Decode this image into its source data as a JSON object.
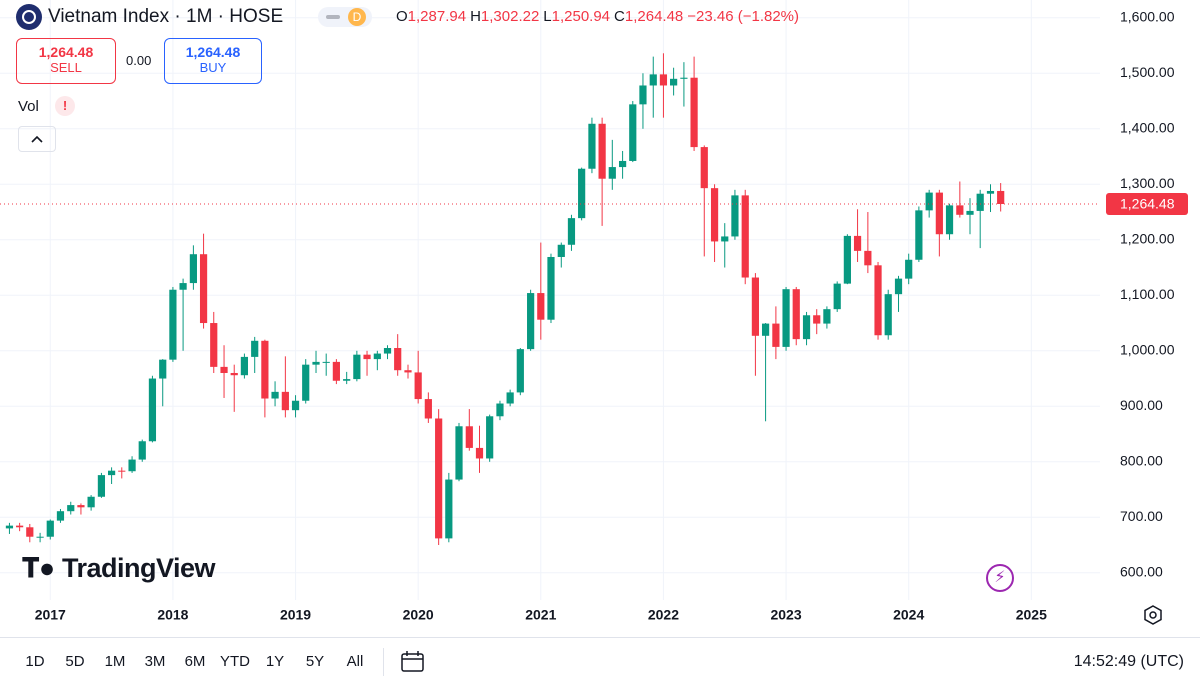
{
  "header": {
    "title": "Vietnam Index · 1M · HOSE",
    "interval_badge": "D",
    "ohlc": [
      {
        "key": "O",
        "value": "1,287.94"
      },
      {
        "key": "H",
        "value": "1,302.22"
      },
      {
        "key": "L",
        "value": "1,250.94"
      },
      {
        "key": "C",
        "value": "1,264.48"
      }
    ],
    "change": "−23.46 (−1.82%)"
  },
  "trade": {
    "sell_price": "1,264.48",
    "sell_label": "SELL",
    "spread": "0.00",
    "buy_price": "1,264.48",
    "buy_label": "BUY"
  },
  "indicator": {
    "name": "Vol",
    "warning": "!"
  },
  "logo": "TradingView",
  "toolbar": {
    "ranges": [
      "1D",
      "5D",
      "1M",
      "3M",
      "6M",
      "YTD",
      "1Y",
      "5Y",
      "All"
    ],
    "clock": "14:52:49 (UTC)"
  },
  "chart_data": {
    "type": "candlestick",
    "up_color": "#089981",
    "down_color": "#f23645",
    "grid": true,
    "xlim": [
      2016.59,
      2025.56
    ],
    "xticks": [
      2017,
      2018,
      2019,
      2020,
      2021,
      2022,
      2023,
      2024,
      2025
    ],
    "ylim": [
      551,
      1632
    ],
    "yticks": [
      {
        "value": 600,
        "label": "600.00"
      },
      {
        "value": 700,
        "label": "700.00"
      },
      {
        "value": 800,
        "label": "800.00"
      },
      {
        "value": 900,
        "label": "900.00"
      },
      {
        "value": 1000,
        "label": "1,000.00"
      },
      {
        "value": 1100,
        "label": "1,100.00"
      },
      {
        "value": 1200,
        "label": "1,200.00"
      },
      {
        "value": 1300,
        "label": "1,300.00"
      },
      {
        "value": 1400,
        "label": "1,400.00"
      },
      {
        "value": 1500,
        "label": "1,500.00"
      },
      {
        "value": 1600,
        "label": "1,600.00"
      }
    ],
    "last_price": {
      "value": 1264.48,
      "label": "1,264.48"
    },
    "x": [
      2016.667,
      2016.75,
      2016.833,
      2016.917,
      2017,
      2017.083,
      2017.167,
      2017.25,
      2017.333,
      2017.417,
      2017.5,
      2017.583,
      2017.667,
      2017.75,
      2017.833,
      2017.917,
      2018,
      2018.083,
      2018.167,
      2018.25,
      2018.333,
      2018.417,
      2018.5,
      2018.583,
      2018.667,
      2018.75,
      2018.833,
      2018.917,
      2019,
      2019.083,
      2019.167,
      2019.25,
      2019.333,
      2019.417,
      2019.5,
      2019.583,
      2019.667,
      2019.75,
      2019.833,
      2019.917,
      2020,
      2020.083,
      2020.167,
      2020.25,
      2020.333,
      2020.417,
      2020.5,
      2020.583,
      2020.667,
      2020.75,
      2020.833,
      2020.917,
      2021,
      2021.083,
      2021.167,
      2021.25,
      2021.333,
      2021.417,
      2021.5,
      2021.583,
      2021.667,
      2021.75,
      2021.833,
      2021.917,
      2022,
      2022.083,
      2022.167,
      2022.25,
      2022.333,
      2022.417,
      2022.5,
      2022.583,
      2022.667,
      2022.75,
      2022.833,
      2022.917,
      2023,
      2023.083,
      2023.167,
      2023.25,
      2023.333,
      2023.417,
      2023.5,
      2023.583,
      2023.667,
      2023.75,
      2023.833,
      2023.917,
      2024,
      2024.083,
      2024.167,
      2024.25,
      2024.333,
      2024.417,
      2024.5,
      2024.583,
      2024.667,
      2024.75
    ],
    "open": [
      680,
      685,
      682,
      665,
      665,
      694,
      711,
      722,
      718,
      737,
      776,
      784,
      783,
      804,
      837,
      950,
      984,
      1110,
      1122,
      1174,
      1050,
      971,
      960,
      956,
      989,
      1018,
      914,
      926,
      893,
      910,
      975,
      980,
      980,
      946,
      949,
      993,
      985,
      995,
      1005,
      965,
      961,
      913,
      878,
      662,
      768,
      864,
      825,
      806,
      882,
      905,
      925,
      1003,
      1104,
      1056,
      1169,
      1191,
      1239,
      1328,
      1409,
      1310,
      1331,
      1342,
      1444,
      1478,
      1498,
      1478,
      1490,
      1492,
      1367,
      1293,
      1197,
      1206,
      1280,
      1132,
      1027,
      1049,
      1007,
      1111,
      1021,
      1064,
      1049,
      1075,
      1121,
      1207,
      1180,
      1154,
      1028,
      1102,
      1130,
      1164,
      1253,
      1285,
      1210,
      1262,
      1245,
      1252,
      1283,
      1287.94
    ],
    "high": [
      690,
      690,
      688,
      672,
      696,
      715,
      728,
      725,
      740,
      780,
      790,
      790,
      810,
      840,
      955,
      985,
      1115,
      1130,
      1190,
      1211,
      1070,
      1010,
      975,
      995,
      1025,
      1020,
      945,
      990,
      920,
      985,
      1000,
      995,
      985,
      962,
      1000,
      1000,
      1000,
      1010,
      1030,
      975,
      1000,
      925,
      895,
      780,
      870,
      895,
      865,
      885,
      910,
      930,
      1005,
      1110,
      1195,
      1175,
      1195,
      1245,
      1330,
      1420,
      1420,
      1380,
      1360,
      1450,
      1500,
      1530,
      1536,
      1510,
      1520,
      1530,
      1370,
      1300,
      1230,
      1290,
      1290,
      1140,
      1050,
      1080,
      1115,
      1115,
      1070,
      1075,
      1080,
      1125,
      1210,
      1255,
      1250,
      1160,
      1110,
      1135,
      1175,
      1260,
      1290,
      1290,
      1265,
      1305,
      1275,
      1290,
      1300,
      1302.22
    ],
    "low": [
      670,
      675,
      655,
      655,
      660,
      690,
      705,
      705,
      712,
      735,
      760,
      770,
      780,
      800,
      835,
      900,
      980,
      1000,
      1110,
      1040,
      960,
      915,
      890,
      950,
      960,
      880,
      900,
      880,
      880,
      905,
      960,
      955,
      940,
      940,
      945,
      955,
      965,
      985,
      955,
      950,
      905,
      870,
      650,
      655,
      765,
      820,
      780,
      800,
      875,
      900,
      920,
      1000,
      1020,
      1050,
      1150,
      1180,
      1235,
      1320,
      1225,
      1290,
      1310,
      1340,
      1400,
      1420,
      1420,
      1460,
      1440,
      1360,
      1170,
      1160,
      1150,
      1200,
      1120,
      955,
      873,
      985,
      1000,
      1010,
      1010,
      1030,
      1040,
      1070,
      1120,
      1160,
      1140,
      1020,
      1020,
      1070,
      1120,
      1160,
      1240,
      1170,
      1200,
      1240,
      1210,
      1185,
      1250,
      1250.94
    ],
    "close": [
      685,
      682,
      665,
      665,
      694,
      711,
      722,
      718,
      737,
      776,
      784,
      783,
      804,
      837,
      950,
      984,
      1110,
      1122,
      1174,
      1050,
      971,
      960,
      956,
      989,
      1018,
      914,
      926,
      893,
      910,
      975,
      980,
      980,
      946,
      949,
      993,
      985,
      995,
      1005,
      965,
      961,
      913,
      878,
      662,
      768,
      864,
      825,
      806,
      882,
      905,
      925,
      1003,
      1104,
      1056,
      1169,
      1191,
      1239,
      1328,
      1409,
      1310,
      1331,
      1342,
      1444,
      1478,
      1498,
      1478,
      1490,
      1492,
      1367,
      1293,
      1197,
      1206,
      1280,
      1132,
      1027,
      1049,
      1007,
      1111,
      1021,
      1064,
      1049,
      1075,
      1121,
      1207,
      1180,
      1154,
      1028,
      1102,
      1130,
      1164,
      1253,
      1285,
      1210,
      1262,
      1245,
      1252,
      1283,
      1287.94,
      1264.48
    ]
  }
}
